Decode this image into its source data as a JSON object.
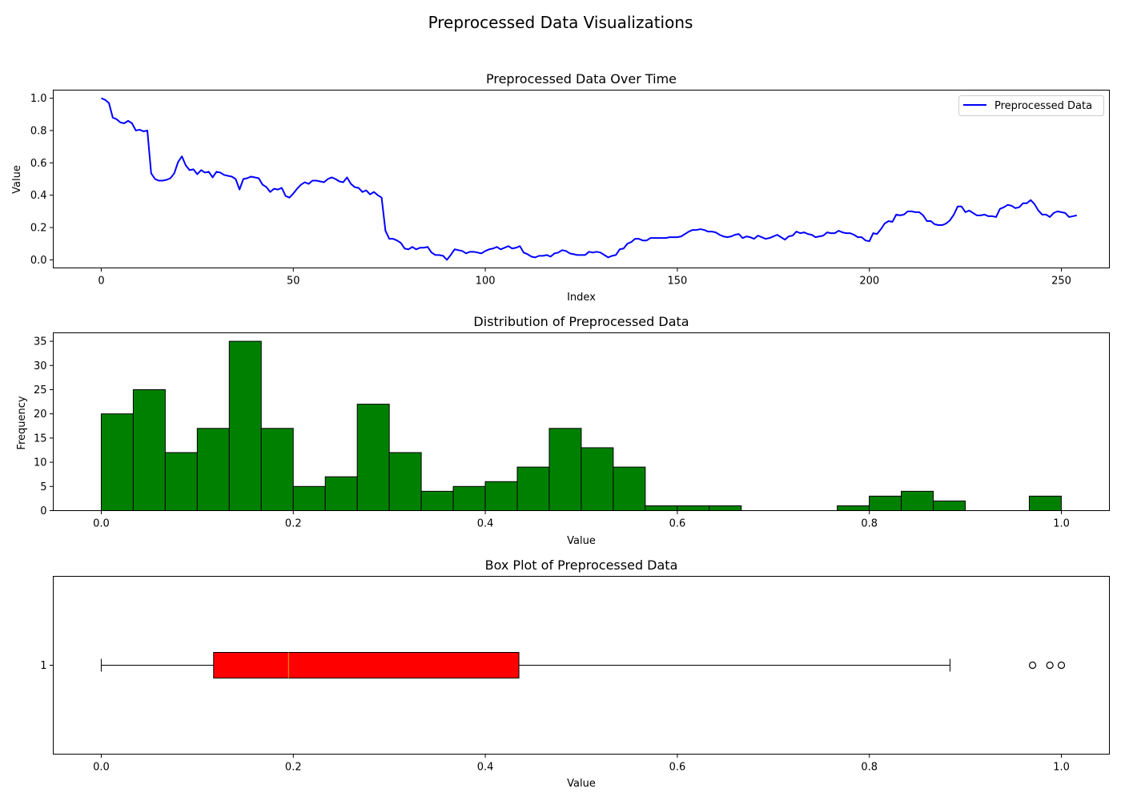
{
  "figure": {
    "suptitle": "Preprocessed Data Visualizations"
  },
  "chart_data": [
    {
      "type": "line",
      "title": "Preprocessed Data Over Time",
      "xlabel": "Index",
      "ylabel": "Value",
      "xlim": [
        -12.5,
        262.5
      ],
      "ylim": [
        -0.05,
        1.05
      ],
      "xticks": [
        0,
        50,
        100,
        150,
        200,
        250
      ],
      "yticks": [
        0.0,
        0.2,
        0.4,
        0.6,
        0.8,
        1.0
      ],
      "grid": false,
      "legend_position": "upper right",
      "color": "#0000ff",
      "series": [
        {
          "name": "Preprocessed Data",
          "values": [
            1.0,
            0.99,
            0.97,
            0.88,
            0.87,
            0.85,
            0.845,
            0.86,
            0.845,
            0.8,
            0.805,
            0.795,
            0.8,
            0.535,
            0.5,
            0.49,
            0.49,
            0.495,
            0.505,
            0.535,
            0.605,
            0.64,
            0.585,
            0.555,
            0.56,
            0.53,
            0.555,
            0.54,
            0.545,
            0.51,
            0.545,
            0.54,
            0.525,
            0.52,
            0.515,
            0.5,
            0.435,
            0.5,
            0.505,
            0.515,
            0.51,
            0.505,
            0.465,
            0.45,
            0.42,
            0.44,
            0.435,
            0.445,
            0.395,
            0.385,
            0.41,
            0.44,
            0.465,
            0.48,
            0.47,
            0.49,
            0.49,
            0.485,
            0.48,
            0.5,
            0.51,
            0.5,
            0.485,
            0.48,
            0.51,
            0.47,
            0.45,
            0.445,
            0.42,
            0.43,
            0.405,
            0.42,
            0.4,
            0.385,
            0.18,
            0.13,
            0.13,
            0.12,
            0.105,
            0.07,
            0.065,
            0.08,
            0.065,
            0.075,
            0.075,
            0.08,
            0.045,
            0.03,
            0.03,
            0.025,
            0.0,
            0.03,
            0.065,
            0.06,
            0.055,
            0.04,
            0.05,
            0.05,
            0.045,
            0.04,
            0.055,
            0.065,
            0.07,
            0.08,
            0.065,
            0.075,
            0.085,
            0.07,
            0.075,
            0.085,
            0.045,
            0.035,
            0.02,
            0.015,
            0.025,
            0.025,
            0.03,
            0.02,
            0.04,
            0.045,
            0.06,
            0.055,
            0.04,
            0.035,
            0.03,
            0.03,
            0.03,
            0.05,
            0.045,
            0.05,
            0.045,
            0.03,
            0.015,
            0.025,
            0.03,
            0.065,
            0.07,
            0.1,
            0.11,
            0.13,
            0.13,
            0.12,
            0.12,
            0.135,
            0.135,
            0.135,
            0.135,
            0.135,
            0.14,
            0.14,
            0.14,
            0.145,
            0.16,
            0.175,
            0.185,
            0.185,
            0.19,
            0.185,
            0.175,
            0.175,
            0.17,
            0.155,
            0.145,
            0.14,
            0.145,
            0.155,
            0.16,
            0.135,
            0.145,
            0.14,
            0.13,
            0.15,
            0.14,
            0.13,
            0.135,
            0.145,
            0.155,
            0.14,
            0.125,
            0.145,
            0.15,
            0.175,
            0.165,
            0.17,
            0.16,
            0.155,
            0.14,
            0.145,
            0.15,
            0.17,
            0.165,
            0.165,
            0.18,
            0.17,
            0.165,
            0.165,
            0.155,
            0.14,
            0.14,
            0.12,
            0.115,
            0.165,
            0.16,
            0.19,
            0.225,
            0.24,
            0.235,
            0.28,
            0.275,
            0.28,
            0.3,
            0.3,
            0.295,
            0.295,
            0.275,
            0.24,
            0.24,
            0.22,
            0.215,
            0.215,
            0.225,
            0.245,
            0.28,
            0.33,
            0.33,
            0.295,
            0.305,
            0.29,
            0.275,
            0.275,
            0.28,
            0.27,
            0.27,
            0.265,
            0.315,
            0.325,
            0.34,
            0.335,
            0.32,
            0.325,
            0.35,
            0.35,
            0.37,
            0.345,
            0.305,
            0.28,
            0.28,
            0.265,
            0.29,
            0.3,
            0.295,
            0.29,
            0.265,
            0.27,
            0.275
          ]
        }
      ]
    },
    {
      "type": "bar",
      "title": "Distribution of Preprocessed Data",
      "xlabel": "Value",
      "ylabel": "Frequency",
      "xlim": [
        -0.05,
        1.05
      ],
      "ylim": [
        0,
        36.75
      ],
      "xticks": [
        0.0,
        0.2,
        0.4,
        0.6,
        0.8,
        1.0
      ],
      "yticks": [
        0,
        5,
        10,
        15,
        20,
        25,
        30,
        35
      ],
      "bin_edges_start": 0.0,
      "bin_width": 0.03333,
      "bins": 30,
      "values": [
        20,
        25,
        12,
        17,
        35,
        17,
        5,
        7,
        22,
        12,
        4,
        5,
        6,
        9,
        17,
        13,
        9,
        1,
        1,
        1,
        0,
        0,
        0,
        1,
        3,
        4,
        2,
        0,
        0,
        3
      ],
      "fill_color": "#008000",
      "edge_color": "#000000"
    },
    {
      "type": "box",
      "title": "Box Plot of Preprocessed Data",
      "xlabel": "Value",
      "ylabel": "",
      "xlim": [
        -0.05,
        1.05
      ],
      "xticks": [
        0.0,
        0.2,
        0.4,
        0.6,
        0.8,
        1.0
      ],
      "ytick_label": "1",
      "whisker_low": 0.0,
      "q1": 0.117,
      "median": 0.195,
      "q3": 0.435,
      "whisker_high": 0.884,
      "outliers": [
        0.97,
        0.988,
        1.0
      ],
      "box_color": "#ff0000",
      "median_color": "#ffa500"
    }
  ]
}
